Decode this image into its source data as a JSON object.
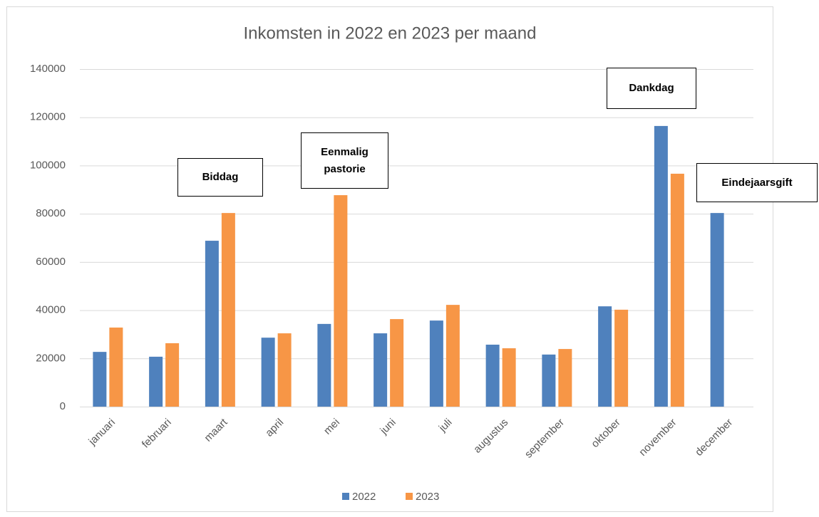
{
  "chart_data": {
    "type": "bar",
    "title": "Inkomsten in 2022 en 2023 per maand",
    "categories": [
      "januari",
      "februari",
      "maart",
      "april",
      "mei",
      "juni",
      "juli",
      "augustus",
      "september",
      "oktober",
      "november",
      "december"
    ],
    "series": [
      {
        "name": "2022",
        "color": "#4f81bd",
        "values": [
          22700,
          20700,
          68800,
          28600,
          34300,
          30400,
          35700,
          25700,
          21600,
          41600,
          116400,
          80300
        ]
      },
      {
        "name": "2023",
        "color": "#f79646",
        "values": [
          32800,
          26300,
          80300,
          30400,
          87700,
          36300,
          42200,
          24200,
          23900,
          40200,
          96600,
          null
        ]
      }
    ],
    "ylim": [
      0,
      140000
    ],
    "yticks": [
      0,
      20000,
      40000,
      60000,
      80000,
      100000,
      120000,
      140000
    ],
    "grid": true,
    "legend": "bottom",
    "annotations": [
      "Biddag",
      "Eenmalig pastorie",
      "Dankdag",
      "Eindejaarsgift"
    ]
  }
}
